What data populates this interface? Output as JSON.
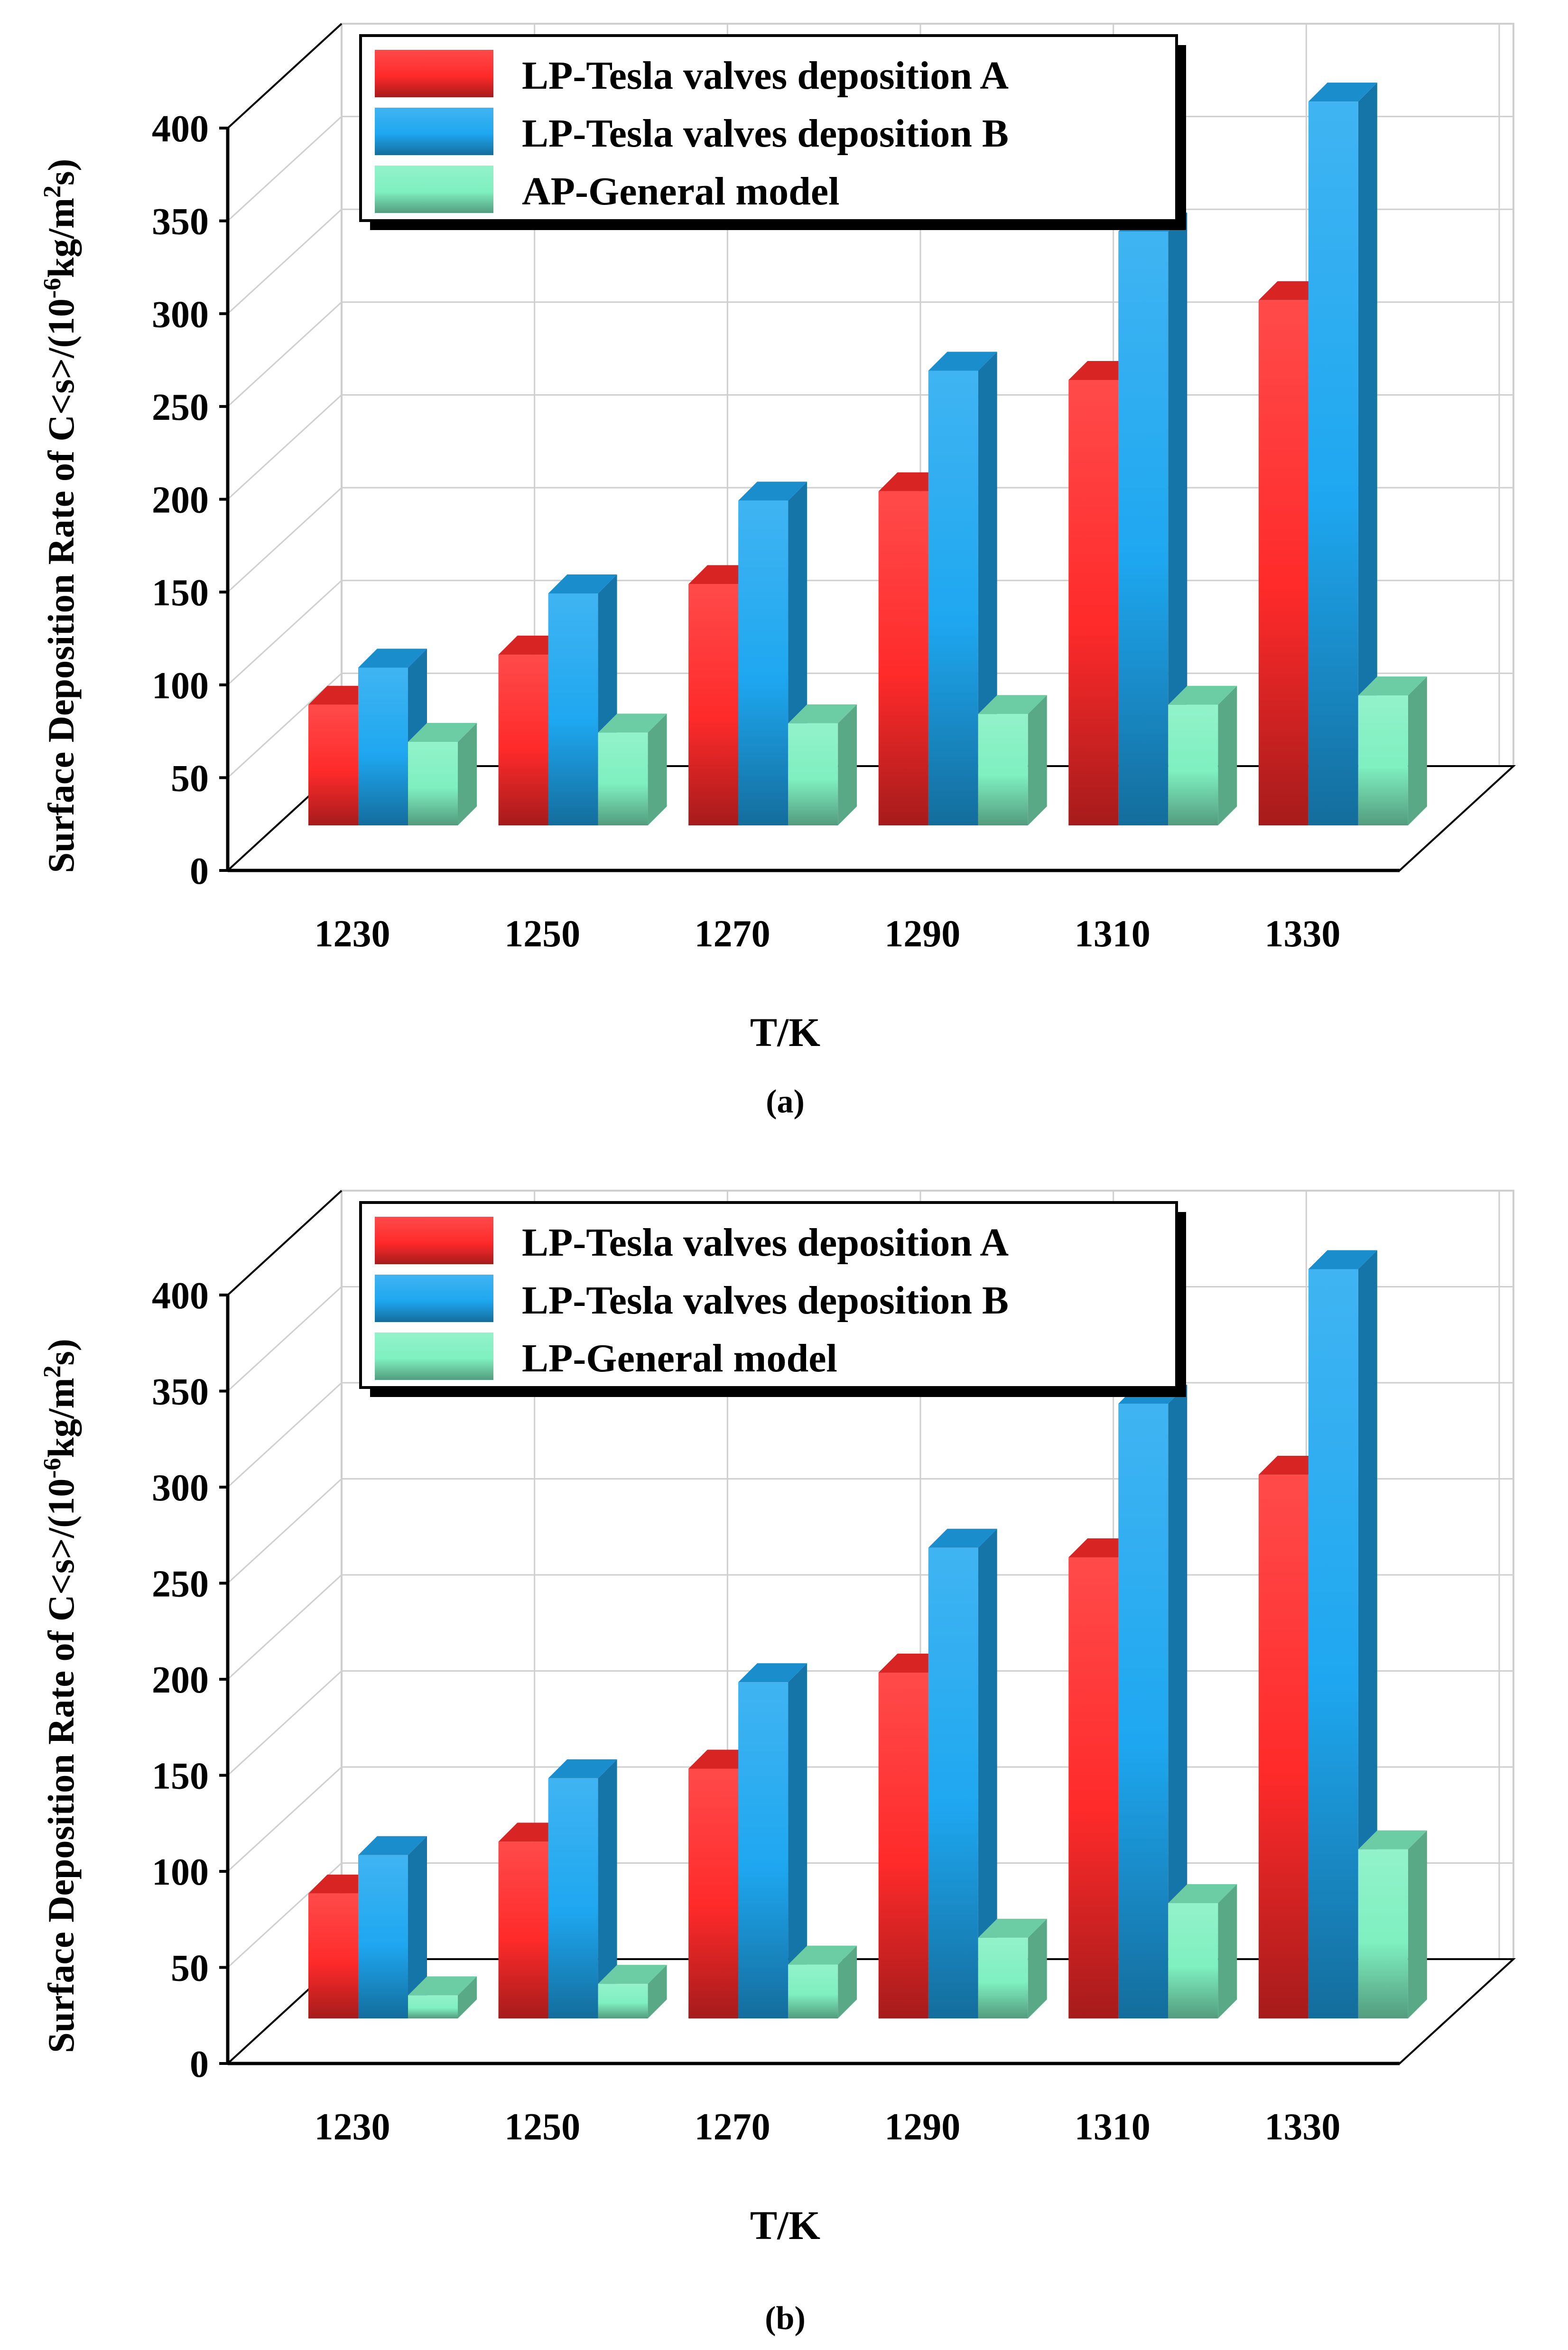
{
  "colors": {
    "series_a": "#ff2a2a",
    "series_b": "#1ea7f0",
    "series_c": "#7ff0c0",
    "axis": "#000000",
    "grid": "#cfcfcf"
  },
  "chart_data": [
    {
      "type": "bar",
      "panel_label": "(a)",
      "categories": [
        "1230",
        "1250",
        "1270",
        "1290",
        "1310",
        "1330"
      ],
      "series": [
        {
          "name": "LP-Tesla valves deposition A",
          "values": [
            65,
            92,
            130,
            180,
            240,
            283
          ]
        },
        {
          "name": "LP-Tesla valves deposition B",
          "values": [
            85,
            125,
            175,
            245,
            320,
            390
          ]
        },
        {
          "name": "AP-General model",
          "values": [
            45,
            50,
            55,
            60,
            65,
            70
          ]
        }
      ],
      "title": "",
      "xlabel": "T/K",
      "ylabel": "Surface Deposition Rate of C<s>/(10^-6 kg/m^2 s)",
      "ylim": [
        0,
        400
      ],
      "yticks": [
        "0",
        "50",
        "100",
        "150",
        "200",
        "250",
        "300",
        "350",
        "400"
      ],
      "legend": "top-left",
      "grid": true
    },
    {
      "type": "bar",
      "panel_label": "(b)",
      "categories": [
        "1230",
        "1250",
        "1270",
        "1290",
        "1310",
        "1330"
      ],
      "series": [
        {
          "name": "LP-Tesla valves deposition A",
          "values": [
            65,
            92,
            130,
            180,
            240,
            283
          ]
        },
        {
          "name": "LP-Tesla valves deposition B",
          "values": [
            85,
            125,
            175,
            245,
            320,
            390
          ]
        },
        {
          "name": "LP-General model",
          "values": [
            12,
            18,
            28,
            42,
            60,
            88
          ]
        }
      ],
      "title": "",
      "xlabel": "T/K",
      "ylabel": "Surface Deposition Rate of C<s>/(10^-6 kg/m^2 s)",
      "ylim": [
        0,
        400
      ],
      "yticks": [
        "0",
        "50",
        "100",
        "150",
        "200",
        "250",
        "300",
        "350",
        "400"
      ],
      "legend": "top-left",
      "grid": true
    }
  ]
}
